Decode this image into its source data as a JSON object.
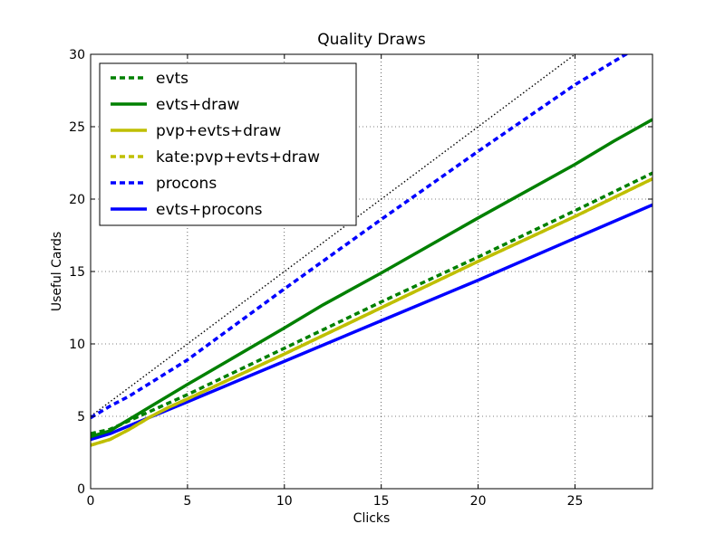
{
  "chart_data": {
    "type": "line",
    "title": "Quality Draws",
    "xlabel": "Clicks",
    "ylabel": "Useful Cards",
    "xlim": [
      0,
      29
    ],
    "ylim": [
      0,
      30
    ],
    "xticks": [
      0,
      5,
      10,
      15,
      20,
      25
    ],
    "yticks": [
      0,
      5,
      10,
      15,
      20,
      25,
      30
    ],
    "grid": true,
    "legend_position": "top-left",
    "series": [
      {
        "name": "evts",
        "color": "#008000",
        "dash": "dashed",
        "x": [
          0,
          1,
          2,
          3,
          5,
          10,
          15,
          20,
          25,
          29
        ],
        "y": [
          3.8,
          4.1,
          4.7,
          5.3,
          6.5,
          9.7,
          12.9,
          16.0,
          19.2,
          21.8
        ]
      },
      {
        "name": "evts+draw",
        "color": "#008000",
        "dash": "solid",
        "x": [
          0,
          1,
          2,
          3,
          5,
          10,
          12,
          15,
          20,
          25,
          27,
          29
        ],
        "y": [
          3.6,
          4.0,
          4.8,
          5.6,
          7.2,
          11.1,
          12.7,
          14.9,
          18.7,
          22.4,
          24.0,
          25.5
        ]
      },
      {
        "name": "pvp+evts+draw",
        "color": "#bfbf00",
        "dash": "solid",
        "x": [
          0,
          1,
          2,
          3,
          4,
          5,
          10,
          15,
          20,
          25,
          29
        ],
        "y": [
          3.0,
          3.4,
          4.1,
          4.9,
          5.6,
          6.2,
          9.3,
          12.5,
          15.7,
          18.8,
          21.4
        ]
      },
      {
        "name": "kate:pvp+evts+draw",
        "color": "#bfbf00",
        "dash": "dashed",
        "x": [
          0,
          1,
          2,
          3,
          4,
          5,
          10,
          15,
          20,
          25,
          29
        ],
        "y": [
          3.0,
          3.4,
          4.1,
          4.9,
          5.6,
          6.2,
          9.3,
          12.5,
          15.7,
          18.8,
          21.4
        ]
      },
      {
        "name": "procons",
        "color": "#0000ff",
        "dash": "dashed",
        "x": [
          0,
          1,
          2,
          5,
          10,
          15,
          20,
          25,
          28.5
        ],
        "y": [
          4.9,
          5.7,
          6.4,
          8.9,
          13.8,
          18.6,
          23.3,
          27.9,
          30.7
        ]
      },
      {
        "name": "evts+procons",
        "color": "#0000ff",
        "dash": "solid",
        "x": [
          0,
          1,
          5,
          10,
          15,
          20,
          25,
          29
        ],
        "y": [
          3.4,
          3.8,
          6.0,
          8.8,
          11.6,
          14.4,
          17.3,
          19.6
        ]
      }
    ],
    "reference_line": {
      "color": "#000000",
      "dash": "dotted",
      "x": [
        0,
        25
      ],
      "y": [
        5,
        30
      ]
    }
  }
}
